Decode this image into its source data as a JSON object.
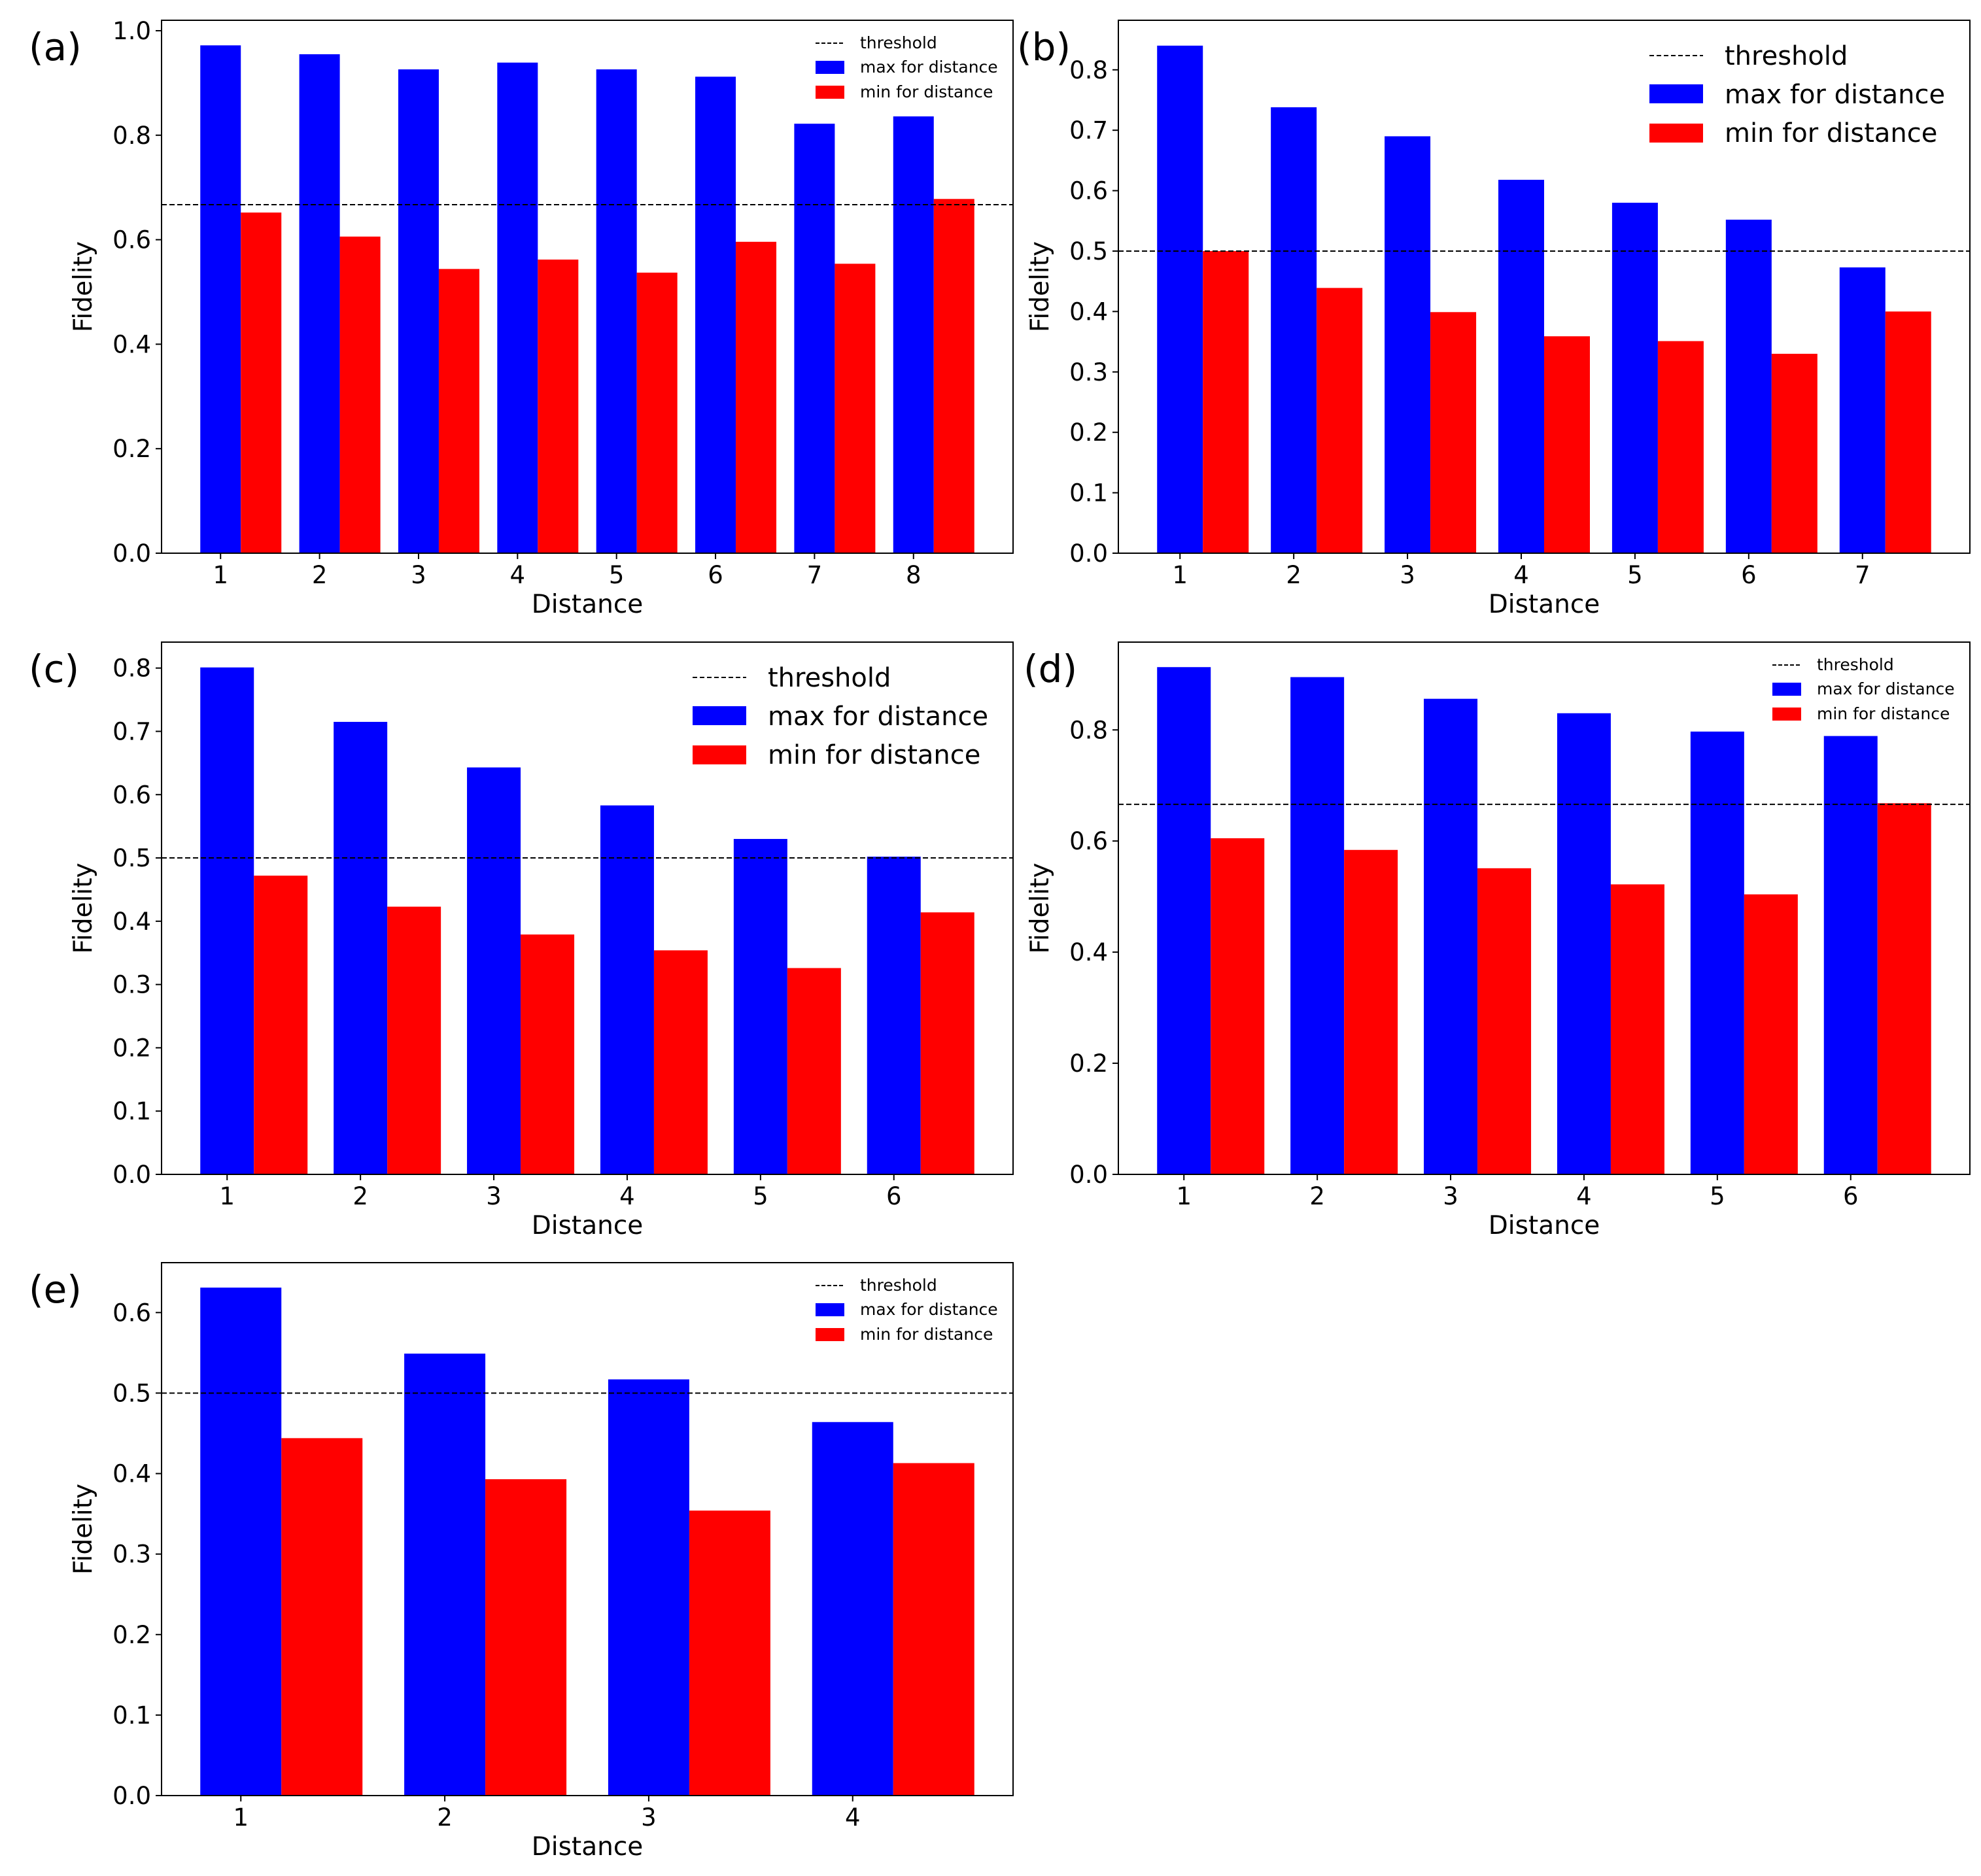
{
  "colors": {
    "max": "#0000ff",
    "min": "#ff0000",
    "threshold": "#000000",
    "axes": "#000000"
  },
  "legend": {
    "threshold": "threshold",
    "max": "max for distance",
    "min": "min for distance"
  },
  "chart_data": [
    {
      "panel": "(a)",
      "type": "bar",
      "xlabel": "Distance",
      "ylabel": "Fidelity",
      "categories": [
        "1",
        "2",
        "3",
        "4",
        "5",
        "6",
        "7",
        "8"
      ],
      "series": [
        {
          "name": "max for distance",
          "values": [
            0.972,
            0.955,
            0.926,
            0.939,
            0.926,
            0.912,
            0.822,
            0.836
          ]
        },
        {
          "name": "min for distance",
          "values": [
            0.652,
            0.606,
            0.544,
            0.562,
            0.537,
            0.596,
            0.554,
            0.678
          ]
        }
      ],
      "threshold": 0.667,
      "ylim": [
        0,
        1.02
      ],
      "yticks": [
        0.0,
        0.2,
        0.4,
        0.6,
        0.8,
        1.0
      ],
      "yticklabels": [
        "0.0",
        "0.2",
        "0.4",
        "0.6",
        "0.8",
        "1.0"
      ],
      "legend_size": "small"
    },
    {
      "panel": "(b)",
      "type": "bar",
      "xlabel": "Distance",
      "ylabel": "Fidelity",
      "categories": [
        "1",
        "2",
        "3",
        "4",
        "5",
        "6",
        "7"
      ],
      "series": [
        {
          "name": "max for distance",
          "values": [
            0.84,
            0.738,
            0.69,
            0.618,
            0.58,
            0.552,
            0.473
          ]
        },
        {
          "name": "min for distance",
          "values": [
            0.5,
            0.439,
            0.399,
            0.359,
            0.351,
            0.33,
            0.4
          ]
        }
      ],
      "threshold": 0.5,
      "ylim": [
        0,
        0.882
      ],
      "yticks": [
        0.0,
        0.1,
        0.2,
        0.3,
        0.4,
        0.5,
        0.6,
        0.7,
        0.8
      ],
      "yticklabels": [
        "0.0",
        "0.1",
        "0.2",
        "0.3",
        "0.4",
        "0.5",
        "0.6",
        "0.7",
        "0.8"
      ],
      "legend_size": "large"
    },
    {
      "panel": "(c)",
      "type": "bar",
      "xlabel": "Distance",
      "ylabel": "Fidelity",
      "categories": [
        "1",
        "2",
        "3",
        "4",
        "5",
        "6"
      ],
      "series": [
        {
          "name": "max for distance",
          "values": [
            0.801,
            0.715,
            0.643,
            0.583,
            0.53,
            0.502
          ]
        },
        {
          "name": "min for distance",
          "values": [
            0.472,
            0.423,
            0.379,
            0.354,
            0.326,
            0.414
          ]
        }
      ],
      "threshold": 0.5,
      "ylim": [
        0,
        0.841
      ],
      "yticks": [
        0.0,
        0.1,
        0.2,
        0.3,
        0.4,
        0.5,
        0.6,
        0.7,
        0.8
      ],
      "yticklabels": [
        "0.0",
        "0.1",
        "0.2",
        "0.3",
        "0.4",
        "0.5",
        "0.6",
        "0.7",
        "0.8"
      ],
      "legend_size": "large"
    },
    {
      "panel": "(d)",
      "type": "bar",
      "xlabel": "Distance",
      "ylabel": "Fidelity",
      "categories": [
        "1",
        "2",
        "3",
        "4",
        "5",
        "6"
      ],
      "series": [
        {
          "name": "max for distance",
          "values": [
            0.913,
            0.895,
            0.856,
            0.83,
            0.797,
            0.789
          ]
        },
        {
          "name": "min for distance",
          "values": [
            0.605,
            0.584,
            0.551,
            0.522,
            0.504,
            0.668
          ]
        }
      ],
      "threshold": 0.666,
      "ylim": [
        0,
        0.958
      ],
      "yticks": [
        0.0,
        0.2,
        0.4,
        0.6,
        0.8
      ],
      "yticklabels": [
        "0.0",
        "0.2",
        "0.4",
        "0.6",
        "0.8"
      ],
      "legend_size": "small"
    },
    {
      "panel": "(e)",
      "type": "bar",
      "xlabel": "Distance",
      "ylabel": "Fidelity",
      "categories": [
        "1",
        "2",
        "3",
        "4"
      ],
      "series": [
        {
          "name": "max for distance",
          "values": [
            0.631,
            0.549,
            0.517,
            0.464
          ]
        },
        {
          "name": "min for distance",
          "values": [
            0.444,
            0.393,
            0.354,
            0.413
          ]
        }
      ],
      "threshold": 0.5,
      "ylim": [
        0,
        0.662
      ],
      "yticks": [
        0.0,
        0.1,
        0.2,
        0.3,
        0.4,
        0.5,
        0.6
      ],
      "yticklabels": [
        "0.0",
        "0.1",
        "0.2",
        "0.3",
        "0.4",
        "0.5",
        "0.6"
      ],
      "legend_size": "small"
    }
  ]
}
